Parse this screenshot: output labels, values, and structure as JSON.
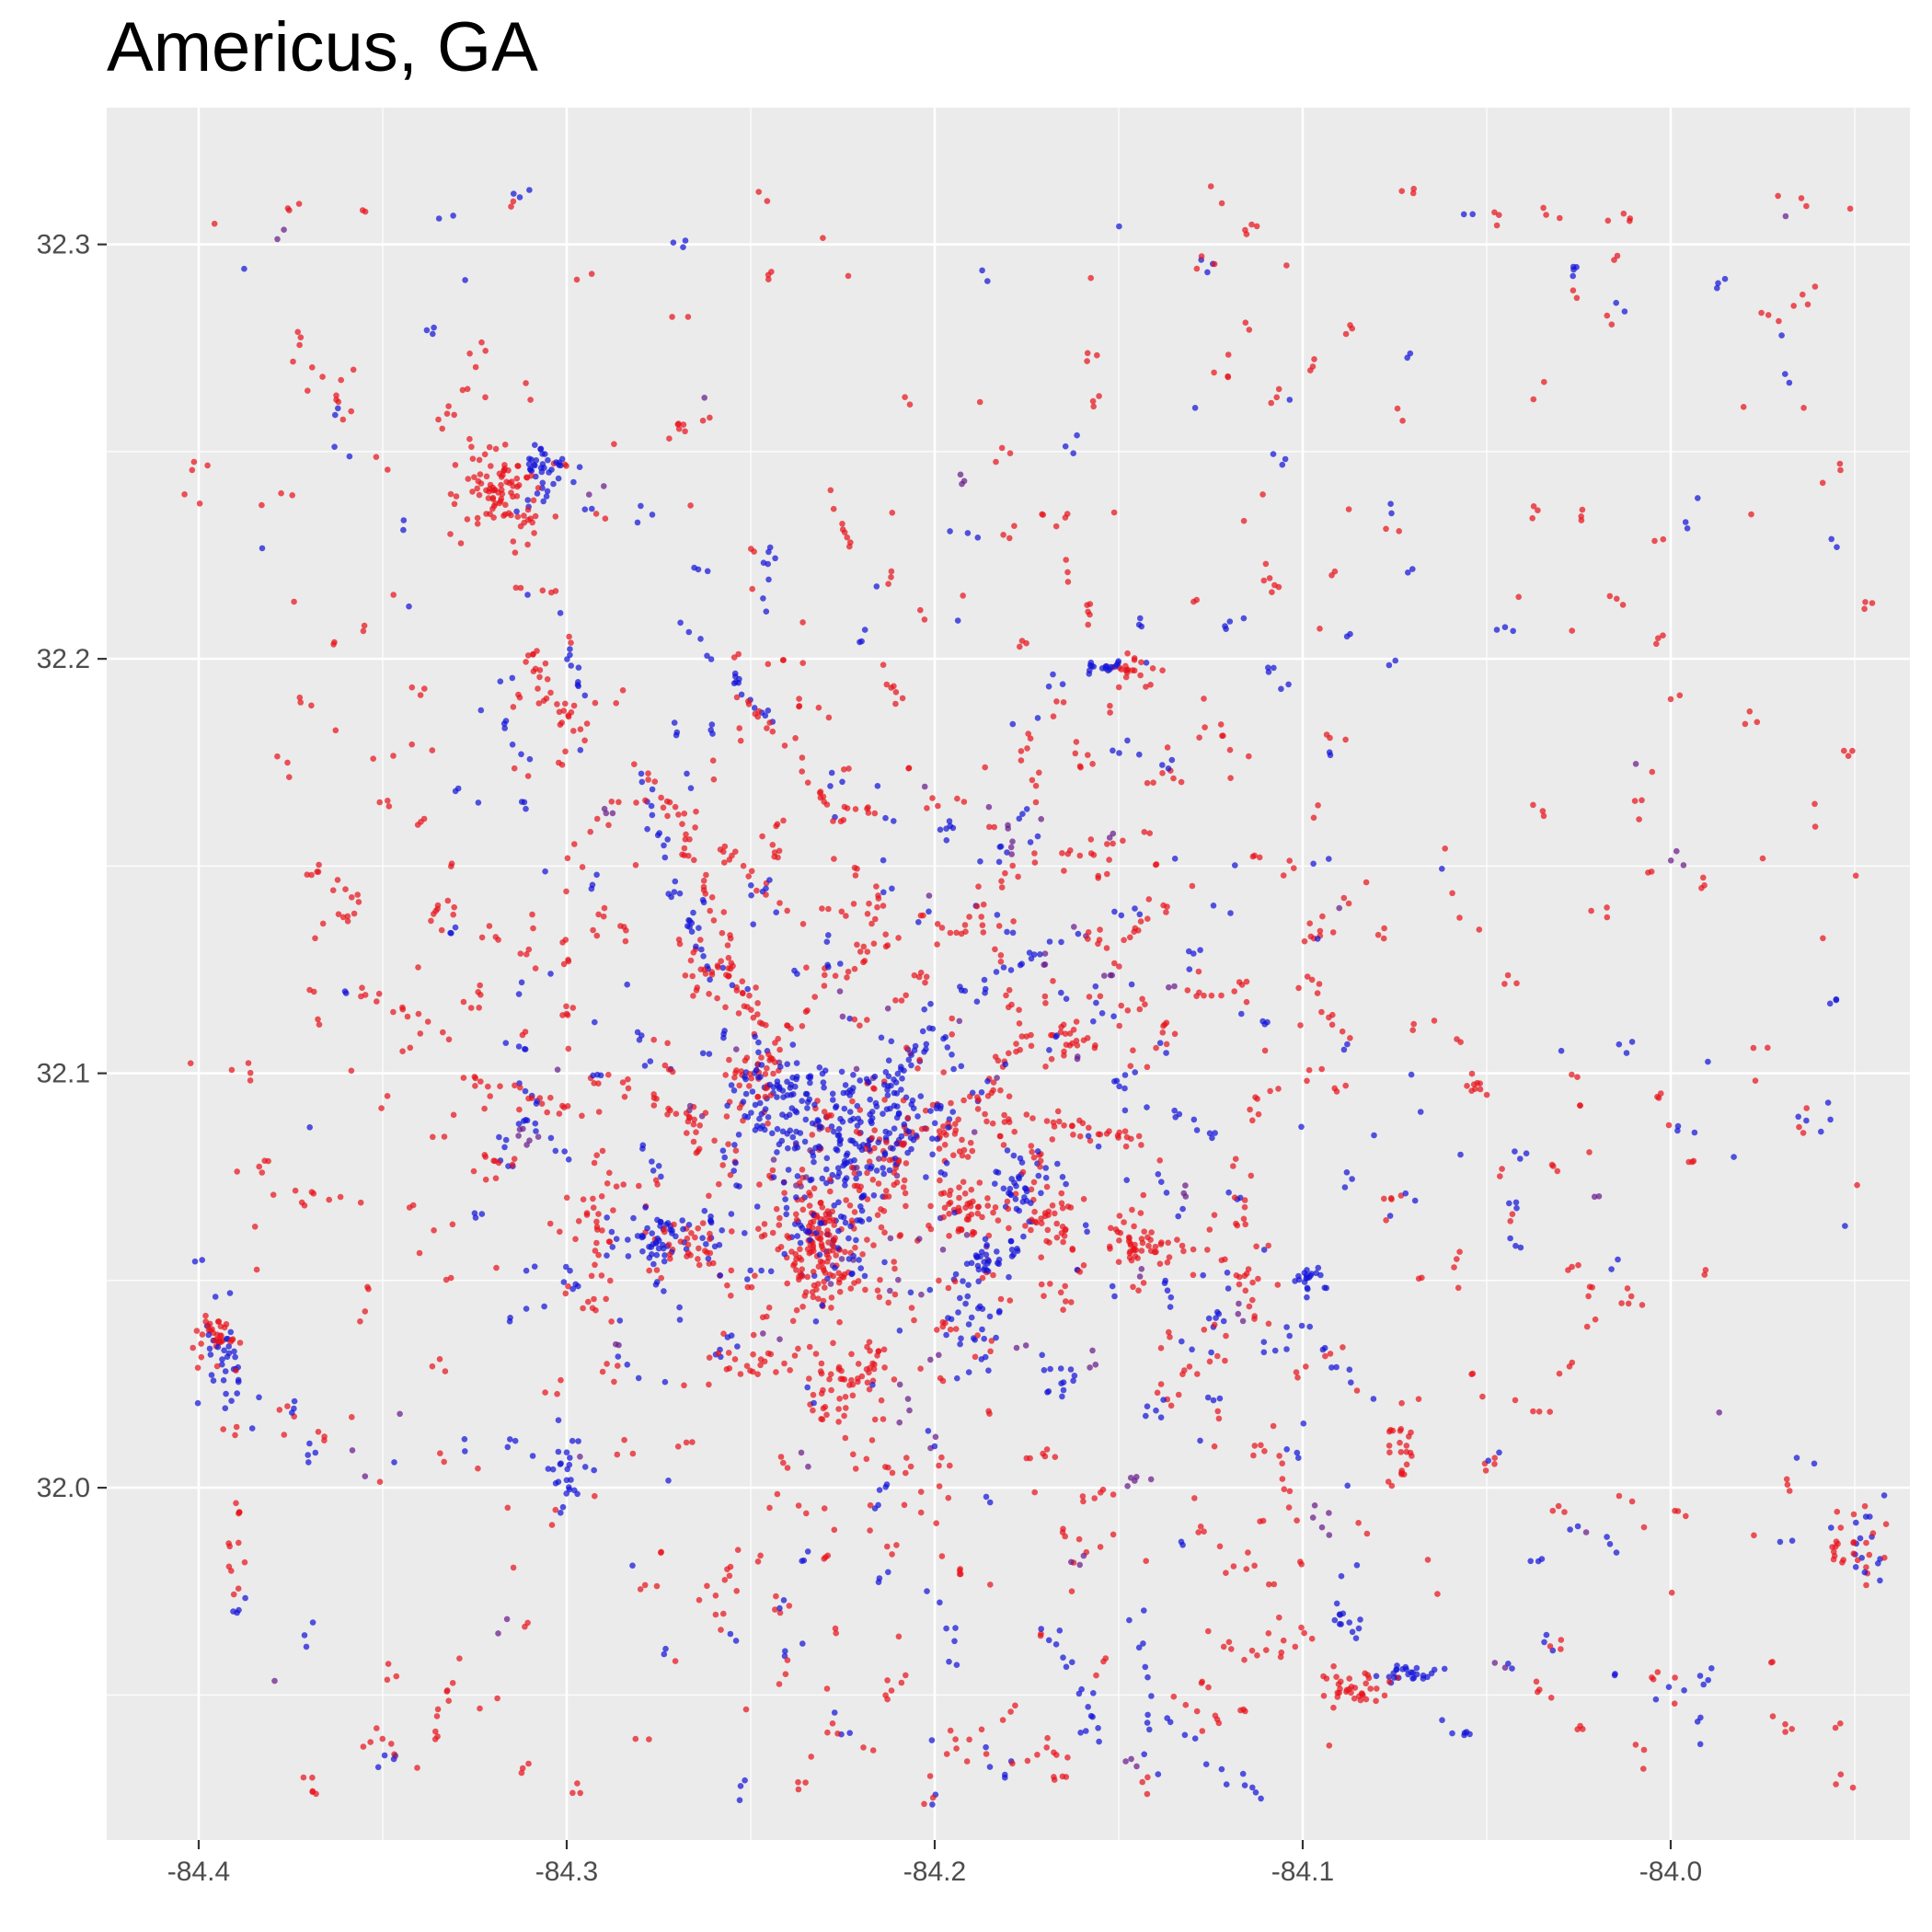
{
  "chart_data": {
    "type": "scatter",
    "title": "Americus, GA",
    "xlabel": "",
    "ylabel": "",
    "xlim": [
      -84.425,
      -83.935
    ],
    "ylim": [
      31.915,
      32.333
    ],
    "x_ticks": [
      {
        "value": -84.4,
        "label": "-84.4"
      },
      {
        "value": -84.3,
        "label": "-84.3"
      },
      {
        "value": -84.2,
        "label": "-84.2"
      },
      {
        "value": -84.1,
        "label": "-84.1"
      },
      {
        "value": -84.0,
        "label": "-84.0"
      }
    ],
    "y_ticks": [
      {
        "value": 32.0,
        "label": "32.0"
      },
      {
        "value": 32.1,
        "label": "32.1"
      },
      {
        "value": 32.2,
        "label": "32.2"
      },
      {
        "value": 32.3,
        "label": "32.3"
      }
    ],
    "grid": true,
    "legend": "none",
    "background": "#EBEBEB",
    "colors": {
      "red": "#E8141C",
      "blue": "#1414D8",
      "purple": "#6A1A8A"
    },
    "clusters": [
      {
        "color": "blue",
        "cx": -84.225,
        "cy": 32.085,
        "sx": 0.012,
        "sy": 0.008,
        "n": 160
      },
      {
        "color": "blue",
        "cx": -84.245,
        "cy": 32.095,
        "sx": 0.006,
        "sy": 0.006,
        "n": 60
      },
      {
        "color": "blue",
        "cx": -84.208,
        "cy": 32.092,
        "sx": 0.006,
        "sy": 0.006,
        "n": 40
      },
      {
        "color": "red",
        "cx": -84.232,
        "cy": 32.058,
        "sx": 0.006,
        "sy": 0.009,
        "n": 150
      },
      {
        "color": "red",
        "cx": -84.248,
        "cy": 32.1,
        "sx": 0.004,
        "sy": 0.005,
        "n": 40
      },
      {
        "color": "red",
        "cx": -84.213,
        "cy": 32.078,
        "sx": 0.005,
        "sy": 0.005,
        "n": 40
      },
      {
        "color": "red",
        "cx": -84.192,
        "cy": 32.068,
        "sx": 0.005,
        "sy": 0.004,
        "n": 40
      },
      {
        "color": "red",
        "cx": -84.225,
        "cy": 32.025,
        "sx": 0.006,
        "sy": 0.007,
        "n": 50
      },
      {
        "color": "red",
        "cx": -84.196,
        "cy": 32.085,
        "sx": 0.004,
        "sy": 0.004,
        "n": 20
      },
      {
        "color": "red",
        "cx": -84.318,
        "cy": 32.24,
        "sx": 0.006,
        "sy": 0.005,
        "n": 90
      },
      {
        "color": "blue",
        "cx": -84.305,
        "cy": 32.245,
        "sx": 0.004,
        "sy": 0.004,
        "n": 40
      },
      {
        "color": "blue",
        "cx": -84.275,
        "cy": 32.06,
        "sx": 0.008,
        "sy": 0.003,
        "n": 60
      },
      {
        "color": "red",
        "cx": -84.268,
        "cy": 32.058,
        "sx": 0.005,
        "sy": 0.004,
        "n": 25
      },
      {
        "color": "blue",
        "cx": -84.185,
        "cy": 32.055,
        "sx": 0.004,
        "sy": 0.004,
        "n": 35
      },
      {
        "color": "blue",
        "cx": -84.178,
        "cy": 32.073,
        "sx": 0.004,
        "sy": 0.004,
        "n": 35
      },
      {
        "color": "red",
        "cx": -84.17,
        "cy": 32.065,
        "sx": 0.006,
        "sy": 0.004,
        "n": 30
      },
      {
        "color": "red",
        "cx": -84.147,
        "cy": 32.06,
        "sx": 0.004,
        "sy": 0.002,
        "n": 20
      },
      {
        "color": "red",
        "cx": -84.395,
        "cy": 32.037,
        "sx": 0.003,
        "sy": 0.003,
        "n": 30
      },
      {
        "color": "blue",
        "cx": -84.393,
        "cy": 32.03,
        "sx": 0.003,
        "sy": 0.006,
        "n": 35
      },
      {
        "color": "blue",
        "cx": -84.098,
        "cy": 32.05,
        "sx": 0.002,
        "sy": 0.002,
        "n": 20
      },
      {
        "color": "red",
        "cx": -84.085,
        "cy": 31.952,
        "sx": 0.005,
        "sy": 0.002,
        "n": 35
      },
      {
        "color": "blue",
        "cx": -84.07,
        "cy": 31.955,
        "sx": 0.005,
        "sy": 0.001,
        "n": 25
      },
      {
        "color": "blue",
        "cx": -84.088,
        "cy": 31.968,
        "sx": 0.002,
        "sy": 0.002,
        "n": 10
      },
      {
        "color": "red",
        "cx": -83.952,
        "cy": 31.985,
        "sx": 0.005,
        "sy": 0.005,
        "n": 25
      },
      {
        "color": "blue",
        "cx": -83.947,
        "cy": 31.985,
        "sx": 0.003,
        "sy": 0.005,
        "n": 15
      },
      {
        "color": "red",
        "cx": -84.145,
        "cy": 32.197,
        "sx": 0.003,
        "sy": 0.002,
        "n": 20
      },
      {
        "color": "blue",
        "cx": -84.153,
        "cy": 32.198,
        "sx": 0.003,
        "sy": 0.001,
        "n": 15
      },
      {
        "color": "red",
        "cx": -84.258,
        "cy": 32.122,
        "sx": 0.005,
        "sy": 0.004,
        "n": 30
      },
      {
        "color": "red",
        "cx": -84.291,
        "cy": 32.065,
        "sx": 0.003,
        "sy": 0.012,
        "n": 35
      },
      {
        "color": "blue",
        "cx": -84.3,
        "cy": 32.005,
        "sx": 0.004,
        "sy": 0.006,
        "n": 25
      },
      {
        "color": "red",
        "cx": -84.25,
        "cy": 32.03,
        "sx": 0.006,
        "sy": 0.003,
        "n": 20
      },
      {
        "color": "blue",
        "cx": -84.19,
        "cy": 32.04,
        "sx": 0.004,
        "sy": 0.006,
        "n": 20
      },
      {
        "color": "blue",
        "cx": -84.166,
        "cy": 32.025,
        "sx": 0.002,
        "sy": 0.002,
        "n": 10
      },
      {
        "color": "red",
        "cx": -84.074,
        "cy": 32.008,
        "sx": 0.003,
        "sy": 0.005,
        "n": 15
      },
      {
        "color": "red",
        "cx": -84.145,
        "cy": 32.057,
        "sx": 0.003,
        "sy": 0.002,
        "n": 15
      },
      {
        "color": "blue",
        "cx": -84.228,
        "cy": 32.06,
        "sx": 0.006,
        "sy": 0.006,
        "n": 40
      },
      {
        "color": "purple",
        "cx": -84.225,
        "cy": 32.07,
        "sx": 0.02,
        "sy": 0.02,
        "n": 30
      }
    ],
    "tracks": [
      {
        "color": "red",
        "x0": -84.315,
        "y0": 32.205,
        "x1": -84.29,
        "y1": 32.175,
        "n": 25
      },
      {
        "color": "blue",
        "x0": -84.27,
        "y0": 32.21,
        "x1": -84.245,
        "y1": 32.185,
        "n": 18
      },
      {
        "color": "red",
        "x0": -84.252,
        "y0": 32.19,
        "x1": -84.24,
        "y1": 32.18,
        "n": 10
      },
      {
        "color": "red",
        "x0": -84.32,
        "y0": 32.28,
        "x1": -84.335,
        "y1": 32.255,
        "n": 10
      },
      {
        "color": "red",
        "x0": -84.375,
        "y0": 32.28,
        "x1": -84.36,
        "y1": 32.26,
        "n": 10
      },
      {
        "color": "blue",
        "x0": -84.282,
        "y0": 32.175,
        "x1": -84.26,
        "y1": 32.12,
        "n": 25
      },
      {
        "color": "red",
        "x0": -84.278,
        "y0": 32.17,
        "x1": -84.24,
        "y1": 32.14,
        "n": 20
      },
      {
        "color": "red",
        "x0": -84.27,
        "y0": 32.16,
        "x1": -84.245,
        "y1": 32.11,
        "n": 25
      },
      {
        "color": "blue",
        "x0": -84.302,
        "y0": 32.21,
        "x1": -84.295,
        "y1": 32.19,
        "n": 10
      },
      {
        "color": "red",
        "x0": -84.3,
        "y0": 32.18,
        "x1": -84.3,
        "y1": 32.1,
        "n": 15
      },
      {
        "color": "red",
        "x0": -84.29,
        "y0": 32.1,
        "x1": -84.26,
        "y1": 32.085,
        "n": 20
      },
      {
        "color": "red",
        "x0": -84.33,
        "y0": 32.1,
        "x1": -84.3,
        "y1": 32.09,
        "n": 15
      },
      {
        "color": "blue",
        "x0": -84.32,
        "y0": 32.095,
        "x1": -84.3,
        "y1": 32.08,
        "n": 10
      },
      {
        "color": "red",
        "x0": -84.36,
        "y0": 32.12,
        "x1": -84.33,
        "y1": 32.11,
        "n": 10
      },
      {
        "color": "blue",
        "x0": -84.2,
        "y0": 32.11,
        "x1": -84.215,
        "y1": 32.095,
        "n": 20
      },
      {
        "color": "blue",
        "x0": -84.19,
        "y0": 32.12,
        "x1": -84.16,
        "y1": 32.135,
        "n": 15
      },
      {
        "color": "red",
        "x0": -84.19,
        "y0": 32.09,
        "x1": -84.175,
        "y1": 32.11,
        "n": 15
      },
      {
        "color": "red",
        "x0": -84.2,
        "y0": 32.13,
        "x1": -84.17,
        "y1": 32.155,
        "n": 12
      },
      {
        "color": "red",
        "x0": -84.17,
        "y0": 32.1,
        "x1": -84.14,
        "y1": 32.14,
        "n": 15
      },
      {
        "color": "red",
        "x0": -84.17,
        "y0": 32.15,
        "x1": -84.14,
        "y1": 32.16,
        "n": 10
      },
      {
        "color": "red",
        "x0": -84.13,
        "y0": 32.12,
        "x1": -84.095,
        "y1": 32.12,
        "n": 12
      },
      {
        "color": "red",
        "x0": -84.18,
        "y0": 32.09,
        "x1": -84.145,
        "y1": 32.085,
        "n": 15
      },
      {
        "color": "red",
        "x0": -84.23,
        "y0": 32.12,
        "x1": -84.2,
        "y1": 32.14,
        "n": 12
      },
      {
        "color": "red",
        "x0": -84.17,
        "y0": 32.07,
        "x1": -84.12,
        "y1": 32.055,
        "n": 15
      },
      {
        "color": "blue",
        "x0": -84.1,
        "y0": 32.04,
        "x1": -84.08,
        "y1": 32.02,
        "n": 8
      },
      {
        "color": "blue",
        "x0": -84.17,
        "y0": 31.97,
        "x1": -84.155,
        "y1": 31.94,
        "n": 12
      },
      {
        "color": "red",
        "x0": -84.2,
        "y0": 31.94,
        "x1": -84.16,
        "y1": 31.93,
        "n": 12
      },
      {
        "color": "blue",
        "x0": -84.145,
        "y0": 31.975,
        "x1": -84.14,
        "y1": 31.93,
        "n": 12
      },
      {
        "color": "blue",
        "x0": -84.13,
        "y0": 31.935,
        "x1": -84.11,
        "y1": 31.925,
        "n": 8
      },
      {
        "color": "red",
        "x0": -84.11,
        "y0": 32.02,
        "x1": -84.1,
        "y1": 31.98,
        "n": 10
      },
      {
        "color": "red",
        "x0": -84.33,
        "y0": 31.96,
        "x1": -84.34,
        "y1": 31.93,
        "n": 10
      },
      {
        "color": "red",
        "x0": -84.39,
        "y0": 32.0,
        "x1": -84.39,
        "y1": 31.97,
        "n": 12
      },
      {
        "color": "red",
        "x0": -84.38,
        "y0": 32.07,
        "x1": -84.36,
        "y1": 32.07,
        "n": 8
      },
      {
        "color": "red",
        "x0": -84.23,
        "y0": 32.24,
        "x1": -84.22,
        "y1": 32.225,
        "n": 8
      },
      {
        "color": "blue",
        "x0": -84.245,
        "y0": 32.23,
        "x1": -84.245,
        "y1": 32.21,
        "n": 8
      },
      {
        "color": "red",
        "x0": -84.24,
        "y0": 32.18,
        "x1": -84.23,
        "y1": 32.165,
        "n": 10
      },
      {
        "color": "red",
        "x0": -84.275,
        "y0": 32.25,
        "x1": -84.26,
        "y1": 32.26,
        "n": 8
      },
      {
        "color": "red",
        "x0": -84.06,
        "y0": 32.11,
        "x1": -84.05,
        "y1": 32.095,
        "n": 8
      },
      {
        "color": "red",
        "x0": -84.03,
        "y0": 32.055,
        "x1": -84.02,
        "y1": 32.045,
        "n": 6
      },
      {
        "color": "blue",
        "x0": -84.06,
        "y0": 31.945,
        "x1": -84.055,
        "y1": 31.94,
        "n": 6
      },
      {
        "color": "blue",
        "x0": -84.0,
        "y0": 31.95,
        "x1": -83.985,
        "y1": 31.96,
        "n": 6
      },
      {
        "color": "red",
        "x0": -84.12,
        "y0": 31.96,
        "x1": -84.1,
        "y1": 31.96,
        "n": 6
      }
    ],
    "scatter_counts": {
      "red": 700,
      "blue": 320,
      "purple": 60
    }
  }
}
